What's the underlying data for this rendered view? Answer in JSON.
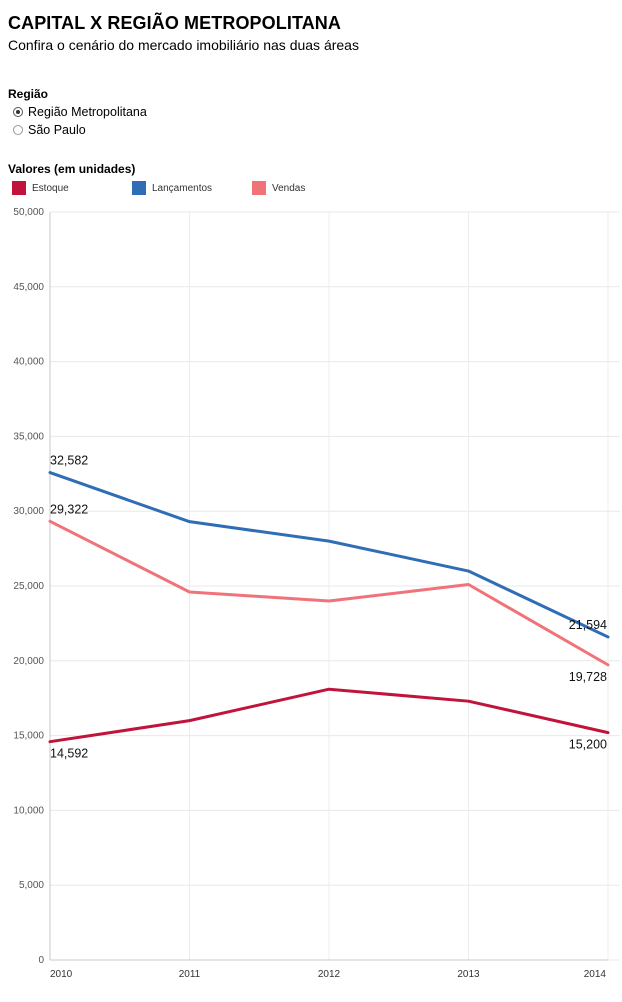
{
  "header": {
    "title": "CAPITAL X REGIÃO METROPOLITANA",
    "subtitle": "Confira o cenário do mercado imobiliário nas duas áreas"
  },
  "filter": {
    "label": "Região",
    "options": [
      {
        "label": "Região Metropolitana",
        "selected": true
      },
      {
        "label": "São Paulo",
        "selected": false
      }
    ]
  },
  "legend": {
    "title": "Valores (em unidades)"
  },
  "chart_data": {
    "type": "line",
    "categories": [
      "2010",
      "2011",
      "2012",
      "2013",
      "2014"
    ],
    "series": [
      {
        "name": "Estoque",
        "color": "#c0143c",
        "values": [
          14592,
          16000,
          18100,
          17300,
          15200
        ]
      },
      {
        "name": "Lançamentos",
        "color": "#2f6db5",
        "values": [
          32582,
          29300,
          28000,
          26000,
          21594
        ]
      },
      {
        "name": "Vendas",
        "color": "#f0737a",
        "values": [
          29322,
          24600,
          24000,
          25100,
          19728
        ]
      }
    ],
    "data_labels": [
      {
        "series": 1,
        "index": 0,
        "text": "32,582"
      },
      {
        "series": 2,
        "index": 0,
        "text": "29,322"
      },
      {
        "series": 0,
        "index": 0,
        "text": "14,592"
      },
      {
        "series": 1,
        "index": 4,
        "text": "21,594"
      },
      {
        "series": 2,
        "index": 4,
        "text": "19,728"
      },
      {
        "series": 0,
        "index": 4,
        "text": "15,200"
      }
    ],
    "ylim": [
      0,
      50000
    ],
    "yticks": [
      0,
      5000,
      10000,
      15000,
      20000,
      25000,
      30000,
      35000,
      40000,
      45000,
      50000
    ],
    "ytick_labels": [
      "0",
      "5,000",
      "10,000",
      "15,000",
      "20,000",
      "25,000",
      "30,000",
      "35,000",
      "40,000",
      "45,000",
      "50,000"
    ],
    "grid": true,
    "legend_position": "top-left"
  }
}
